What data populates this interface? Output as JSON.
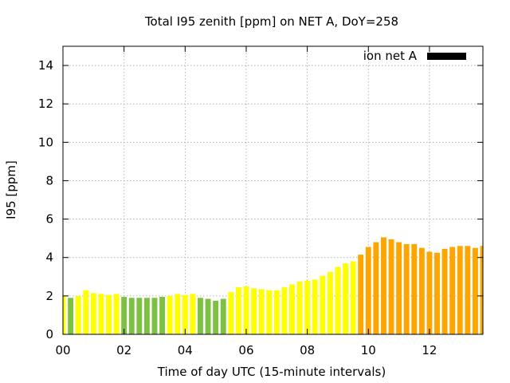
{
  "chart_data": {
    "type": "bar",
    "title": "Total I95 zenith [ppm] on NET A, DoY=258",
    "xlabel": "Time of day UTC (15-minute intervals)",
    "ylabel": "I95 [ppm]",
    "xlim": [
      0,
      13.75
    ],
    "ylim": [
      0,
      15
    ],
    "x_ticks": [
      "00",
      "02",
      "04",
      "06",
      "08",
      "10",
      "12"
    ],
    "y_ticks": [
      0,
      2,
      4,
      6,
      8,
      10,
      12,
      14
    ],
    "grid": true,
    "legend": {
      "position": "top-right",
      "entries": [
        {
          "label": "ion net A",
          "color": "#000000"
        }
      ]
    },
    "colors": {
      "green": "#7dc142",
      "yellow": "#ffff00",
      "orange": "#ffa500"
    },
    "series": [
      {
        "name": "ion net A",
        "x": [
          0.0,
          0.25,
          0.5,
          0.75,
          1.0,
          1.25,
          1.5,
          1.75,
          2.0,
          2.25,
          2.5,
          2.75,
          3.0,
          3.25,
          3.5,
          3.75,
          4.0,
          4.25,
          4.5,
          4.75,
          5.0,
          5.25,
          5.5,
          5.75,
          6.0,
          6.25,
          6.5,
          6.75,
          7.0,
          7.25,
          7.5,
          7.75,
          8.0,
          8.25,
          8.5,
          8.75,
          9.0,
          9.25,
          9.5,
          9.75,
          10.0,
          10.25,
          10.5,
          10.75,
          11.0,
          11.25,
          11.5,
          11.75,
          12.0,
          12.25,
          12.5,
          12.75,
          13.0,
          13.25,
          13.5,
          13.75
        ],
        "values": [
          2.0,
          1.9,
          2.0,
          2.3,
          2.15,
          2.1,
          2.05,
          2.1,
          1.95,
          1.9,
          1.9,
          1.9,
          1.9,
          1.95,
          2.0,
          2.1,
          2.05,
          2.1,
          1.9,
          1.85,
          1.75,
          1.85,
          2.2,
          2.45,
          2.5,
          2.4,
          2.35,
          2.3,
          2.3,
          2.45,
          2.6,
          2.75,
          2.8,
          2.85,
          3.05,
          3.25,
          3.5,
          3.7,
          3.8,
          4.15,
          4.55,
          4.8,
          5.05,
          4.95,
          4.8,
          4.7,
          4.7,
          4.5,
          4.3,
          4.25,
          4.45,
          4.55,
          4.6,
          4.6,
          4.5,
          4.6
        ],
        "categories": [
          "yellow",
          "green",
          "yellow",
          "yellow",
          "yellow",
          "yellow",
          "yellow",
          "yellow",
          "green",
          "green",
          "green",
          "green",
          "green",
          "green",
          "yellow",
          "yellow",
          "yellow",
          "yellow",
          "green",
          "green",
          "green",
          "green",
          "yellow",
          "yellow",
          "yellow",
          "yellow",
          "yellow",
          "yellow",
          "yellow",
          "yellow",
          "yellow",
          "yellow",
          "yellow",
          "yellow",
          "yellow",
          "yellow",
          "yellow",
          "yellow",
          "yellow",
          "orange",
          "orange",
          "orange",
          "orange",
          "orange",
          "orange",
          "orange",
          "orange",
          "orange",
          "orange",
          "orange",
          "orange",
          "orange",
          "orange",
          "orange",
          "orange",
          "orange"
        ]
      }
    ]
  }
}
